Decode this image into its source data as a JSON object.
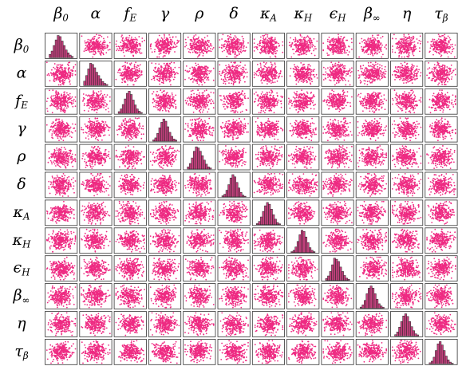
{
  "chart_data": {
    "type": "scatter",
    "title": "",
    "variables": [
      {
        "symbol": "β",
        "sub": "0"
      },
      {
        "symbol": "α",
        "sub": ""
      },
      {
        "symbol": "f",
        "sub": "E"
      },
      {
        "symbol": "γ",
        "sub": ""
      },
      {
        "symbol": "ρ",
        "sub": ""
      },
      {
        "symbol": "δ",
        "sub": ""
      },
      {
        "symbol": "κ",
        "sub": "A"
      },
      {
        "symbol": "κ",
        "sub": "H"
      },
      {
        "symbol": "ϵ",
        "sub": "H"
      },
      {
        "symbol": "β",
        "sub": "∞"
      },
      {
        "symbol": "η",
        "sub": ""
      },
      {
        "symbol": "τ",
        "sub": "β"
      }
    ],
    "layout": "pairs-matrix",
    "diagonal": "histogram",
    "off_diagonal": "scatter",
    "points_per_panel": 260,
    "histogram_bins": 12,
    "histogram_heights": [
      [
        0.15,
        0.3,
        0.55,
        0.8,
        1.0,
        0.95,
        0.75,
        0.55,
        0.35,
        0.22,
        0.12,
        0.06
      ],
      [
        0.2,
        0.45,
        0.75,
        1.0,
        0.95,
        0.8,
        0.6,
        0.45,
        0.3,
        0.18,
        0.1,
        0.05
      ],
      [
        0.08,
        0.2,
        0.4,
        0.65,
        0.9,
        1.0,
        0.85,
        0.6,
        0.38,
        0.2,
        0.1,
        0.04
      ],
      [
        0.06,
        0.15,
        0.35,
        0.6,
        0.85,
        1.0,
        0.9,
        0.65,
        0.4,
        0.22,
        0.1,
        0.05
      ],
      [
        0.1,
        0.25,
        0.5,
        0.8,
        1.0,
        0.95,
        0.8,
        0.6,
        0.4,
        0.22,
        0.1,
        0.05
      ],
      [
        0.05,
        0.12,
        0.3,
        0.55,
        0.85,
        1.0,
        0.9,
        0.65,
        0.4,
        0.2,
        0.08,
        0.03
      ],
      [
        0.05,
        0.15,
        0.35,
        0.6,
        0.85,
        1.0,
        0.92,
        0.7,
        0.45,
        0.25,
        0.1,
        0.04
      ],
      [
        0.04,
        0.1,
        0.25,
        0.5,
        0.8,
        1.0,
        0.95,
        0.7,
        0.45,
        0.22,
        0.1,
        0.04
      ],
      [
        0.08,
        0.2,
        0.4,
        0.7,
        1.0,
        0.95,
        0.85,
        0.6,
        0.4,
        0.22,
        0.1,
        0.05
      ],
      [
        0.05,
        0.15,
        0.35,
        0.65,
        0.9,
        1.0,
        0.9,
        0.65,
        0.4,
        0.2,
        0.1,
        0.04
      ],
      [
        0.06,
        0.18,
        0.4,
        0.65,
        0.9,
        1.0,
        0.88,
        0.65,
        0.42,
        0.24,
        0.1,
        0.05
      ],
      [
        0.05,
        0.12,
        0.3,
        0.6,
        0.9,
        1.0,
        0.85,
        0.6,
        0.35,
        0.18,
        0.08,
        0.03
      ]
    ],
    "colors": {
      "scatter": "#ee2a82",
      "histogram_fill": "#c4417e",
      "histogram_edge": "#222222",
      "panel_border": "#333333"
    }
  }
}
